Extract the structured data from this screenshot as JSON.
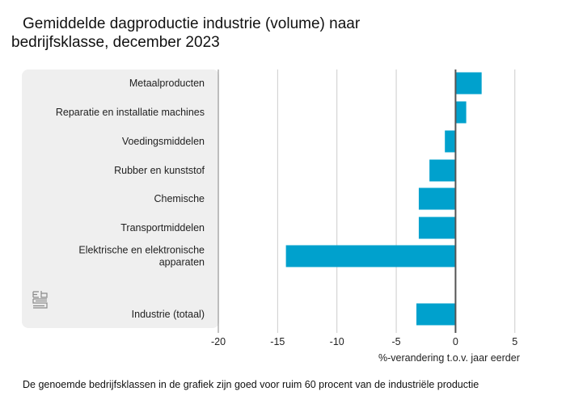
{
  "chart_data": {
    "type": "bar",
    "orientation": "horizontal",
    "title": "Gemiddelde dagproductie industrie (volume) naar bedrijfsklasse, december 2023",
    "title_lines": [
      "Gemiddelde dagproductie industrie (volume) naar",
      "bedrijfsklasse, december 2023"
    ],
    "categories": [
      "Metaalproducten",
      "Reparatie en installatie machines",
      "Voedingsmiddelen",
      "Rubber en kunststof",
      "Chemische",
      "Transportmiddelen",
      "Elektrische en elektronische apparaten",
      "Industrie (totaal)"
    ],
    "category_lines": [
      [
        "Metaalproducten"
      ],
      [
        "Reparatie en installatie machines"
      ],
      [
        "Voedingsmiddelen"
      ],
      [
        "Rubber en kunststof"
      ],
      [
        "Chemische"
      ],
      [
        "Transportmiddelen"
      ],
      [
        "Elektrische en elektronische",
        "apparaten"
      ],
      [
        "Industrie (totaal)"
      ]
    ],
    "values": [
      2.2,
      0.9,
      -0.9,
      -2.2,
      -3.1,
      -3.1,
      -14.3,
      -3.3
    ],
    "xlabel": "%-verandering t.o.v. jaar eerder",
    "ylabel": "",
    "xlim": [
      -20,
      7
    ],
    "xticks": [
      -20,
      -15,
      -10,
      -5,
      0,
      5
    ],
    "xtick_labels": [
      "-20",
      "-15",
      "-10",
      "-5",
      "0",
      "5"
    ],
    "grid": true,
    "bar_color": "#00a1cd",
    "zero_line_color": "#555555",
    "grid_color": "#cccccc",
    "panel_color": "#efefef",
    "footnote": "De genoemde bedrijfsklassen in de grafiek zijn goed voor ruim 60 procent van de industriële productie",
    "logo": "cbs"
  }
}
